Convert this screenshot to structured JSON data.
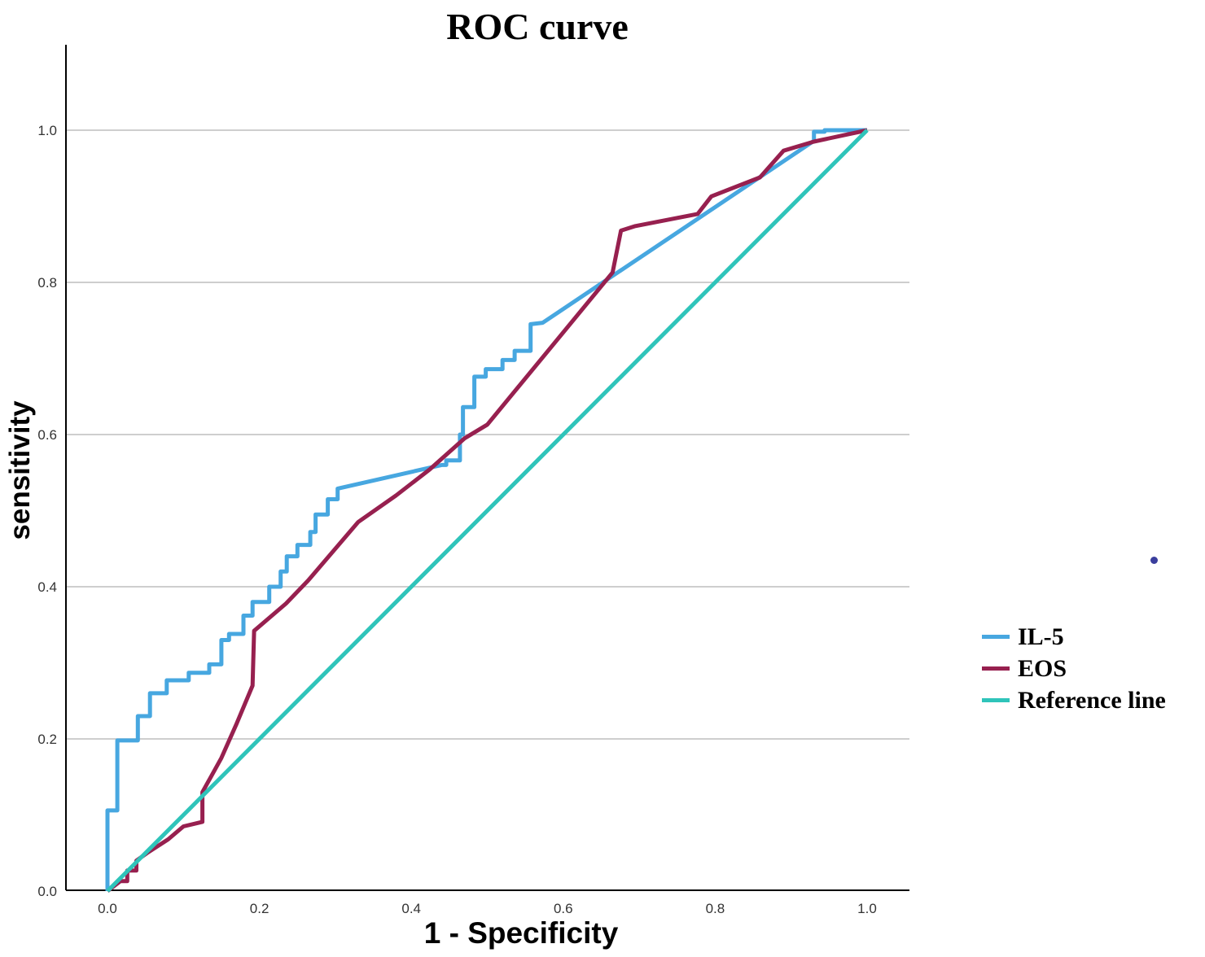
{
  "figure": {
    "title": "ROC curve",
    "x_axis_label": "1 - Specificity",
    "y_axis_label": "sensitivity"
  },
  "legend": {
    "items": [
      {
        "label": "IL-5",
        "color": "#47a7e0"
      },
      {
        "label": "EOS",
        "color": "#97204f"
      },
      {
        "label": "Reference line",
        "color": "#2fc4ba"
      }
    ]
  },
  "colors": {
    "axis": "#000000",
    "gridline": "#bdbdbd",
    "tick_text": "#333333",
    "stray_dot": "#3a3e9d"
  },
  "chart_data": {
    "type": "line",
    "title": "ROC curve",
    "xlabel": "1 - Specificity",
    "ylabel": "sensitivity",
    "xlim": [
      0,
      1
    ],
    "ylim": [
      0,
      1
    ],
    "x_ticks": [
      "0.0",
      "0.2",
      "0.4",
      "0.6",
      "0.8",
      "1.0"
    ],
    "y_ticks": [
      "0.0",
      "0.2",
      "0.4",
      "0.6",
      "0.8",
      "1.0"
    ],
    "grid": "horizontal-only",
    "legend_position": "right-outside",
    "series": [
      {
        "name": "IL-5",
        "color": "#47a7e0",
        "points": [
          [
            0.0,
            0.0
          ],
          [
            0.0,
            0.106
          ],
          [
            0.013,
            0.106
          ],
          [
            0.013,
            0.198
          ],
          [
            0.04,
            0.198
          ],
          [
            0.04,
            0.23
          ],
          [
            0.056,
            0.23
          ],
          [
            0.056,
            0.26
          ],
          [
            0.078,
            0.26
          ],
          [
            0.078,
            0.277
          ],
          [
            0.107,
            0.277
          ],
          [
            0.107,
            0.287
          ],
          [
            0.134,
            0.287
          ],
          [
            0.134,
            0.298
          ],
          [
            0.15,
            0.298
          ],
          [
            0.15,
            0.33
          ],
          [
            0.16,
            0.33
          ],
          [
            0.16,
            0.338
          ],
          [
            0.179,
            0.338
          ],
          [
            0.179,
            0.362
          ],
          [
            0.191,
            0.362
          ],
          [
            0.191,
            0.38
          ],
          [
            0.213,
            0.38
          ],
          [
            0.213,
            0.4
          ],
          [
            0.228,
            0.4
          ],
          [
            0.228,
            0.42
          ],
          [
            0.236,
            0.42
          ],
          [
            0.236,
            0.44
          ],
          [
            0.25,
            0.44
          ],
          [
            0.25,
            0.455
          ],
          [
            0.267,
            0.455
          ],
          [
            0.267,
            0.472
          ],
          [
            0.274,
            0.472
          ],
          [
            0.274,
            0.495
          ],
          [
            0.29,
            0.495
          ],
          [
            0.29,
            0.515
          ],
          [
            0.303,
            0.515
          ],
          [
            0.303,
            0.529
          ],
          [
            0.44,
            0.56
          ],
          [
            0.446,
            0.56
          ],
          [
            0.446,
            0.566
          ],
          [
            0.464,
            0.566
          ],
          [
            0.464,
            0.6
          ],
          [
            0.468,
            0.6
          ],
          [
            0.468,
            0.636
          ],
          [
            0.483,
            0.636
          ],
          [
            0.483,
            0.676
          ],
          [
            0.498,
            0.676
          ],
          [
            0.498,
            0.686
          ],
          [
            0.52,
            0.686
          ],
          [
            0.52,
            0.698
          ],
          [
            0.536,
            0.698
          ],
          [
            0.536,
            0.71
          ],
          [
            0.557,
            0.71
          ],
          [
            0.557,
            0.745
          ],
          [
            0.573,
            0.747
          ],
          [
            0.93,
            0.986
          ],
          [
            0.93,
            0.998
          ],
          [
            0.944,
            0.998
          ],
          [
            0.944,
            1.0
          ],
          [
            1.0,
            1.0
          ]
        ]
      },
      {
        "name": "EOS",
        "color": "#97204f",
        "points": [
          [
            0.0,
            0.0
          ],
          [
            0.017,
            0.013
          ],
          [
            0.026,
            0.013
          ],
          [
            0.026,
            0.027
          ],
          [
            0.038,
            0.027
          ],
          [
            0.038,
            0.04
          ],
          [
            0.052,
            0.05
          ],
          [
            0.08,
            0.068
          ],
          [
            0.1,
            0.085
          ],
          [
            0.125,
            0.091
          ],
          [
            0.125,
            0.13
          ],
          [
            0.15,
            0.175
          ],
          [
            0.17,
            0.22
          ],
          [
            0.191,
            0.27
          ],
          [
            0.193,
            0.342
          ],
          [
            0.235,
            0.378
          ],
          [
            0.264,
            0.408
          ],
          [
            0.33,
            0.485
          ],
          [
            0.38,
            0.52
          ],
          [
            0.424,
            0.554
          ],
          [
            0.47,
            0.595
          ],
          [
            0.5,
            0.613
          ],
          [
            0.665,
            0.813
          ],
          [
            0.676,
            0.868
          ],
          [
            0.695,
            0.874
          ],
          [
            0.777,
            0.89
          ],
          [
            0.795,
            0.913
          ],
          [
            0.859,
            0.938
          ],
          [
            0.89,
            0.973
          ],
          [
            0.93,
            0.985
          ],
          [
            1.0,
            1.0
          ]
        ]
      },
      {
        "name": "Reference line",
        "color": "#2fc4ba",
        "points": [
          [
            0.0,
            0.0
          ],
          [
            1.0,
            1.0
          ]
        ]
      }
    ]
  }
}
